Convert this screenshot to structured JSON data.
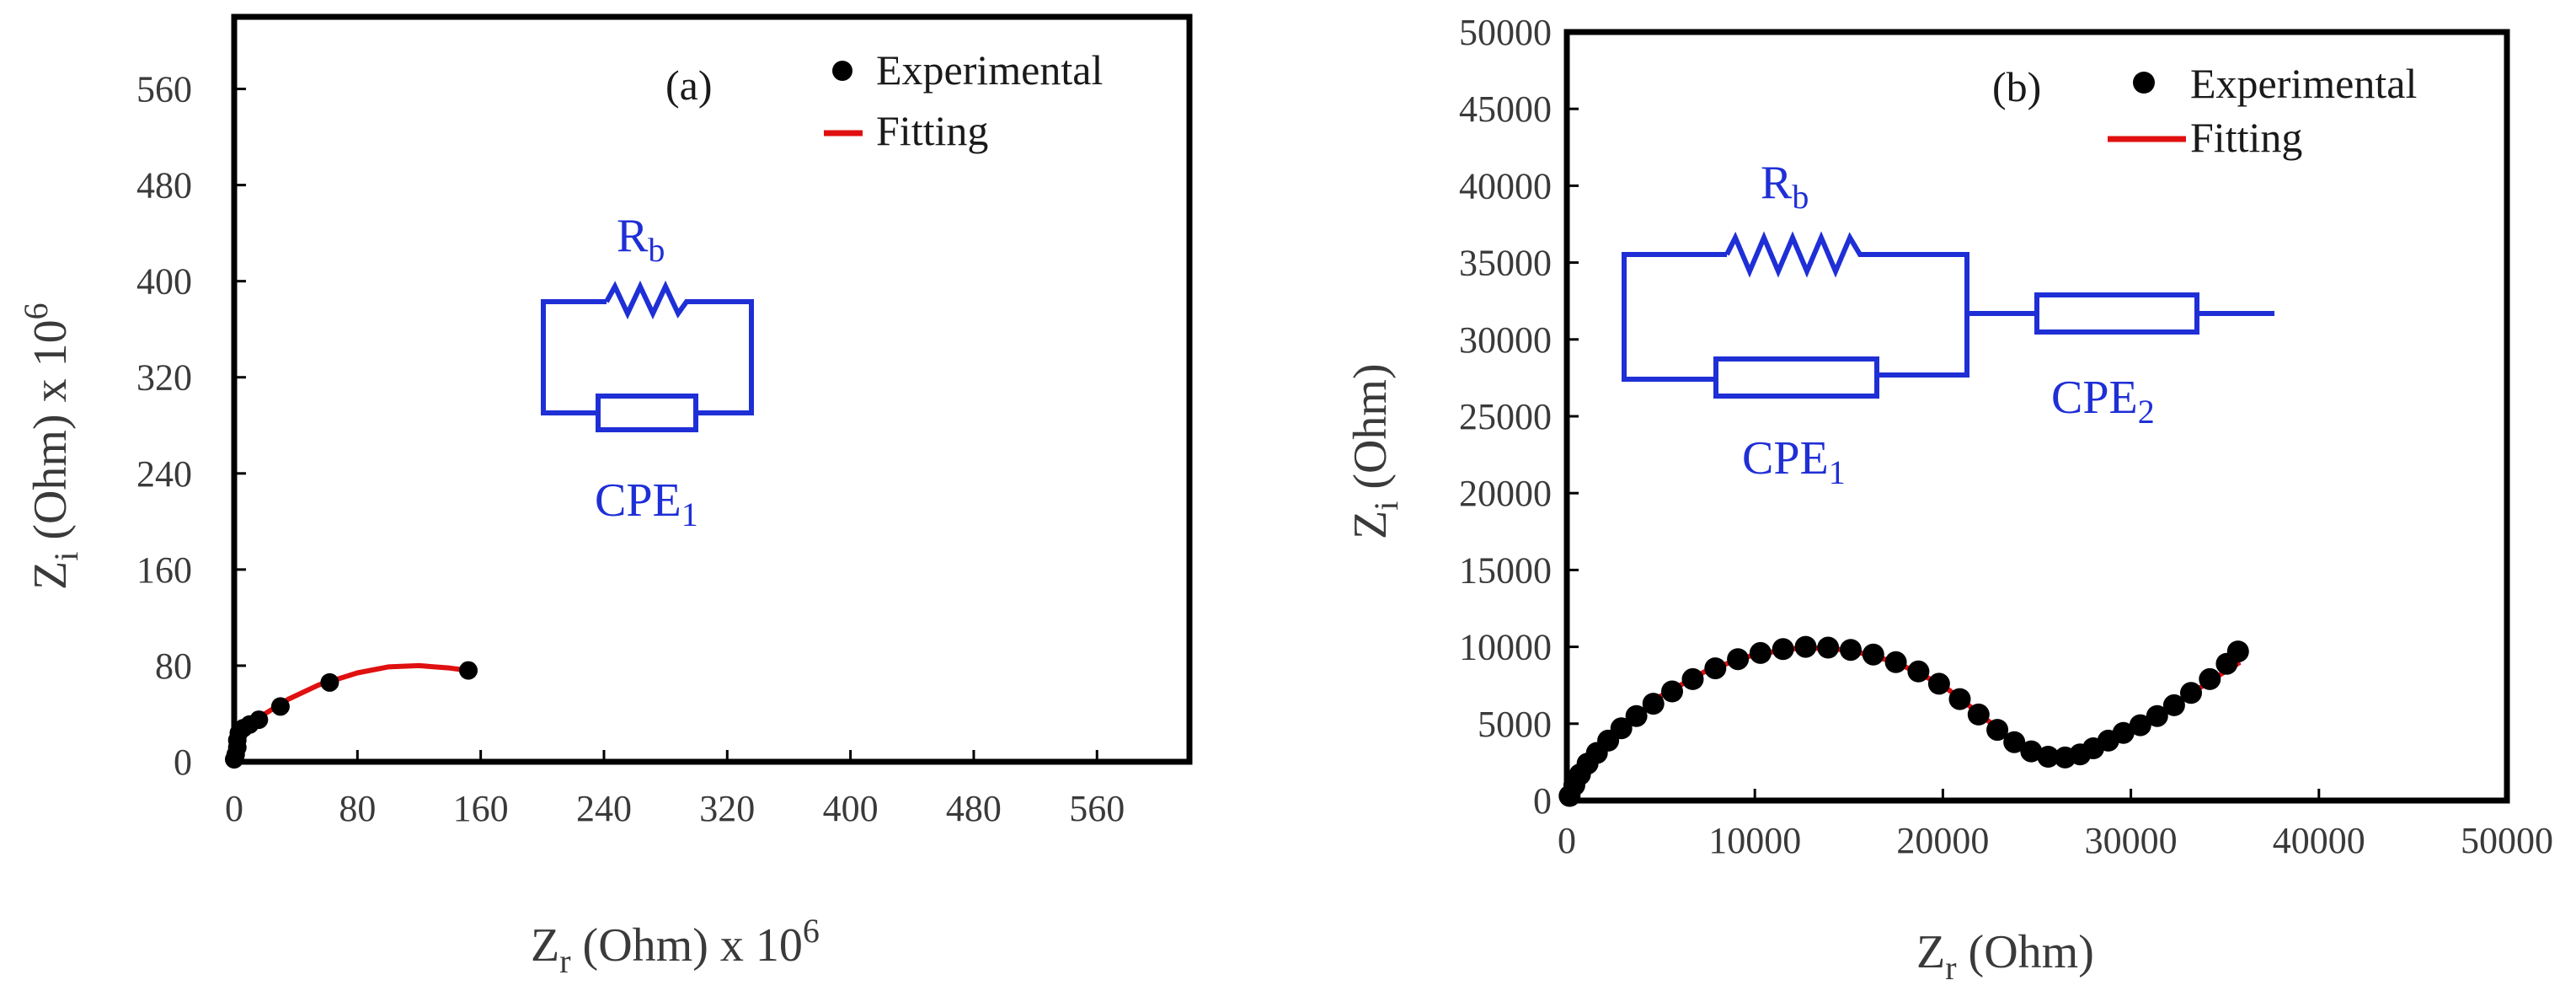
{
  "chart_data": [
    {
      "type": "scatter",
      "panel_label": "(a)",
      "xlabel": {
        "main": "Z",
        "sub": "r",
        "rest": " (Ohm) x 10",
        "sup": "6"
      },
      "ylabel": {
        "main": "Z",
        "sub": "i",
        "rest": " (Ohm) x 10",
        "sup": "6"
      },
      "xlim": [
        0,
        620
      ],
      "ylim": [
        0,
        620
      ],
      "xticks": [
        "0",
        "80",
        "160",
        "240",
        "320",
        "400",
        "480",
        "560"
      ],
      "yticks": [
        "0",
        "80",
        "160",
        "240",
        "320",
        "400",
        "480",
        "560"
      ],
      "legend": {
        "position": "top-right",
        "entries": [
          "Experimental",
          "Fitting"
        ]
      },
      "series": [
        {
          "name": "Experimental",
          "marker": "circle",
          "color": "#000000",
          "points": [
            [
              0,
              2
            ],
            [
              1,
              6
            ],
            [
              2,
              12
            ],
            [
              2,
              18
            ],
            [
              3,
              24
            ],
            [
              6,
              28
            ],
            [
              10,
              31
            ],
            [
              16,
              35
            ],
            [
              30,
              46
            ],
            [
              62,
              66
            ],
            [
              152,
              76
            ]
          ]
        },
        {
          "name": "Fitting",
          "line": true,
          "color": "#e01010",
          "points": [
            [
              0,
              0
            ],
            [
              4,
              16
            ],
            [
              10,
              28
            ],
            [
              20,
              40
            ],
            [
              35,
              52
            ],
            [
              55,
              64
            ],
            [
              80,
              74
            ],
            [
              100,
              79
            ],
            [
              120,
              80
            ],
            [
              140,
              78
            ],
            [
              152,
              76
            ]
          ]
        }
      ],
      "circuit": {
        "label_top": {
          "main": "R",
          "sub": "b"
        },
        "label_bottom": {
          "main": "CPE",
          "sub": "1"
        }
      }
    },
    {
      "type": "scatter",
      "panel_label": "(b)",
      "xlabel": {
        "main": "Z",
        "sub": "r",
        "rest": " (Ohm)"
      },
      "ylabel": {
        "main": "Z",
        "sub": "i",
        "rest": " (Ohm)"
      },
      "xlim": [
        0,
        50000
      ],
      "ylim": [
        0,
        50000
      ],
      "xticks": [
        "0",
        "10000",
        "20000",
        "30000",
        "40000",
        "50000"
      ],
      "yticks": [
        "0",
        "5000",
        "10000",
        "15000",
        "20000",
        "25000",
        "30000",
        "35000",
        "40000",
        "45000",
        "50000"
      ],
      "legend": {
        "position": "top-right",
        "entries": [
          "Experimental",
          "Fitting"
        ]
      },
      "series": [
        {
          "name": "Experimental",
          "marker": "circle",
          "color": "#000000",
          "points": [
            [
              150,
              300
            ],
            [
              400,
              1000
            ],
            [
              700,
              1700
            ],
            [
              1100,
              2400
            ],
            [
              1600,
              3100
            ],
            [
              2200,
              3900
            ],
            [
              2900,
              4700
            ],
            [
              3700,
              5500
            ],
            [
              4600,
              6300
            ],
            [
              5600,
              7100
            ],
            [
              6700,
              7900
            ],
            [
              7900,
              8600
            ],
            [
              9100,
              9200
            ],
            [
              10300,
              9600
            ],
            [
              11500,
              9850
            ],
            [
              12700,
              10000
            ],
            [
              13900,
              9950
            ],
            [
              15100,
              9800
            ],
            [
              16300,
              9500
            ],
            [
              17500,
              9000
            ],
            [
              18700,
              8400
            ],
            [
              19800,
              7600
            ],
            [
              20900,
              6600
            ],
            [
              21900,
              5600
            ],
            [
              22900,
              4600
            ],
            [
              23800,
              3800
            ],
            [
              24700,
              3200
            ],
            [
              25600,
              2850
            ],
            [
              26500,
              2800
            ],
            [
              27300,
              3000
            ],
            [
              28000,
              3400
            ],
            [
              28800,
              3900
            ],
            [
              29600,
              4400
            ],
            [
              30500,
              4900
            ],
            [
              31400,
              5500
            ],
            [
              32300,
              6200
            ],
            [
              33200,
              7000
            ],
            [
              34200,
              7900
            ],
            [
              35100,
              8900
            ],
            [
              35700,
              9700
            ]
          ]
        },
        {
          "name": "Fitting",
          "line": true,
          "color": "#e01010",
          "points": [
            [
              0,
              0
            ],
            [
              600,
              1500
            ],
            [
              1500,
              3000
            ],
            [
              3000,
              4800
            ],
            [
              5000,
              6800
            ],
            [
              7500,
              8500
            ],
            [
              10000,
              9500
            ],
            [
              12500,
              9950
            ],
            [
              15000,
              9800
            ],
            [
              17500,
              9000
            ],
            [
              20000,
              7500
            ],
            [
              22000,
              5600
            ],
            [
              23800,
              3800
            ],
            [
              25500,
              2900
            ],
            [
              27000,
              2900
            ],
            [
              28500,
              3600
            ],
            [
              30500,
              4900
            ],
            [
              32500,
              6400
            ],
            [
              34500,
              8000
            ],
            [
              35800,
              9000
            ]
          ]
        }
      ],
      "circuit": {
        "label_top": {
          "main": "R",
          "sub": "b"
        },
        "label_bottom": {
          "main": "CPE",
          "sub": "1"
        },
        "label_right": {
          "main": "CPE",
          "sub": "2"
        }
      }
    }
  ]
}
